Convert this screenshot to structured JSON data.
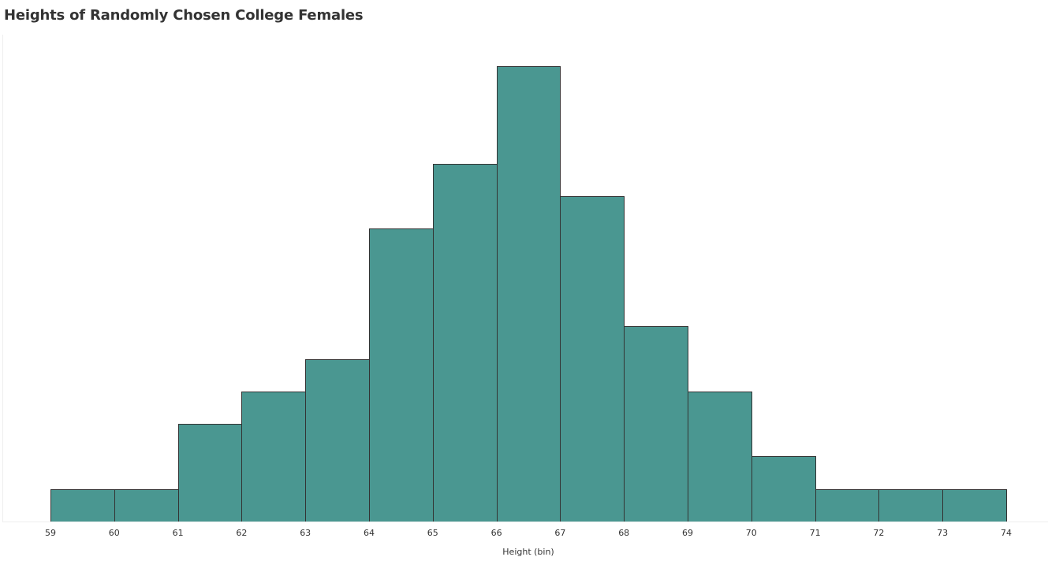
{
  "chart_data": {
    "type": "bar",
    "title": "Heights of Randomly Chosen College Females",
    "xlabel": "Height (bin)",
    "ylabel": "",
    "bin_edges": [
      59,
      60,
      61,
      62,
      63,
      64,
      65,
      66,
      67,
      68,
      69,
      70,
      71,
      72,
      73,
      74
    ],
    "categories": [
      "59-60",
      "60-61",
      "61-62",
      "62-63",
      "63-64",
      "64-65",
      "65-66",
      "66-67",
      "67-68",
      "68-69",
      "69-70",
      "70-71",
      "71-72",
      "72-73",
      "73-74"
    ],
    "values": [
      1,
      1,
      3,
      4,
      5,
      9,
      11,
      14,
      10,
      6,
      4,
      2,
      1,
      1,
      1
    ],
    "tick_labels": [
      "59",
      "60",
      "61",
      "62",
      "63",
      "64",
      "65",
      "66",
      "67",
      "68",
      "69",
      "70",
      "71",
      "72",
      "73",
      "74"
    ],
    "ylim": [
      0,
      14
    ],
    "grid": false,
    "y_axis_shown": false,
    "legend": null,
    "bar_color": "#4a9791",
    "bar_edge_color": "#333333"
  }
}
